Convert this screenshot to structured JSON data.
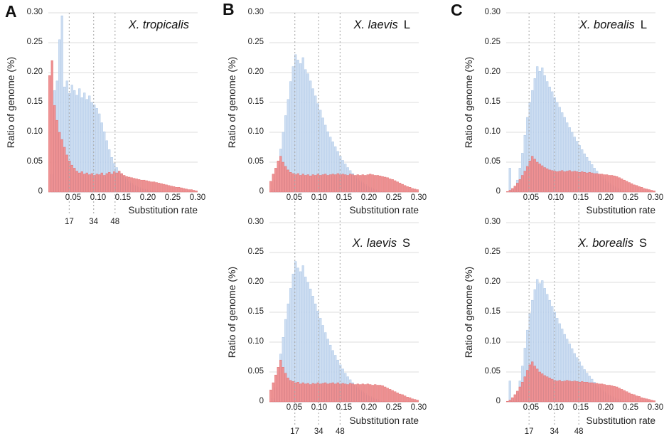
{
  "axis": {
    "y_label": "Ratio of genome (%)",
    "x_label": "Substitution rate",
    "y_ticks": [
      "0.30",
      "0.25",
      "0.20",
      "0.15",
      "0.10",
      "0.05",
      "0"
    ],
    "x_ticks": [
      "0.05",
      "0.10",
      "0.15",
      "0.20",
      "0.25",
      "0.30"
    ]
  },
  "colors": {
    "blue_fill": "#cfdff2",
    "blue_stroke": "#aac6e6",
    "red_fill": "#ef9496",
    "red_stroke": "#e06e6e",
    "grid": "#dedede",
    "dashed": "#aaaaaa",
    "text": "#222222",
    "background": "#ffffff"
  },
  "chart_data": [
    {
      "type": "bar",
      "letter": "A",
      "title_italic": "X. tropicalis",
      "title_suffix": "",
      "xlabel": "Substitution rate",
      "ylabel": "Ratio of genome (%)",
      "xlim": [
        0,
        0.3
      ],
      "ylim": [
        0,
        0.3
      ],
      "bin_width": 0.005,
      "dashed_lines": {
        "rates": [
          0.042,
          0.091,
          0.134
        ],
        "labels": [
          "17",
          "34",
          "48"
        ],
        "labels_visible": true
      },
      "series": [
        {
          "name": "blue",
          "values": [
            0,
            0.03,
            0.17,
            0.186,
            0.255,
            0.295,
            0.176,
            0.186,
            0.165,
            0.179,
            0.17,
            0.162,
            0.173,
            0.158,
            0.166,
            0.155,
            0.161,
            0.15,
            0.146,
            0.14,
            0.131,
            0.116,
            0.101,
            0.086,
            0.071,
            0.058,
            0.048,
            0.041,
            0.035,
            0.03,
            0.026,
            0.022,
            0.018,
            0.015,
            0.012,
            0.01,
            0.008,
            0.006,
            0.005,
            0.004,
            0.003,
            0.002,
            0.002,
            0.001,
            0.001,
            0.001,
            0,
            0,
            0,
            0,
            0,
            0,
            0,
            0,
            0,
            0,
            0,
            0,
            0,
            0
          ]
        },
        {
          "name": "red",
          "values": [
            0.195,
            0.22,
            0.145,
            0.12,
            0.1,
            0.088,
            0.075,
            0.062,
            0.052,
            0.045,
            0.04,
            0.035,
            0.032,
            0.034,
            0.03,
            0.032,
            0.029,
            0.031,
            0.028,
            0.03,
            0.029,
            0.032,
            0.028,
            0.031,
            0.033,
            0.03,
            0.034,
            0.032,
            0.035,
            0.031,
            0.028,
            0.026,
            0.025,
            0.024,
            0.023,
            0.022,
            0.021,
            0.02,
            0.02,
            0.019,
            0.018,
            0.017,
            0.017,
            0.016,
            0.015,
            0.014,
            0.013,
            0.012,
            0.011,
            0.01,
            0.009,
            0.008,
            0.008,
            0.007,
            0.006,
            0.005,
            0.004,
            0.004,
            0.003,
            0.002
          ]
        }
      ]
    },
    {
      "type": "bar",
      "letter": "B",
      "title_italic": "X. laevis",
      "title_suffix": "L",
      "xlabel": "Substitution rate",
      "ylabel": "Ratio of genome (%)",
      "xlim": [
        0,
        0.3
      ],
      "ylim": [
        0,
        0.3
      ],
      "bin_width": 0.005,
      "dashed_lines": {
        "rates": [
          0.051,
          0.099,
          0.142
        ],
        "labels": [
          "17",
          "34",
          "48"
        ],
        "labels_visible": false
      },
      "series": [
        {
          "name": "blue",
          "values": [
            0,
            0.005,
            0.02,
            0.045,
            0.072,
            0.1,
            0.128,
            0.155,
            0.185,
            0.21,
            0.23,
            0.221,
            0.215,
            0.225,
            0.205,
            0.198,
            0.186,
            0.173,
            0.161,
            0.148,
            0.137,
            0.124,
            0.112,
            0.101,
            0.092,
            0.084,
            0.076,
            0.068,
            0.06,
            0.053,
            0.047,
            0.041,
            0.036,
            0.031,
            0.027,
            0.023,
            0.019,
            0.016,
            0.013,
            0.01,
            0.008,
            0.006,
            0.004,
            0.003,
            0.002,
            0.001,
            0.001,
            0,
            0,
            0,
            0,
            0,
            0,
            0,
            0,
            0,
            0,
            0,
            0,
            0
          ]
        },
        {
          "name": "red",
          "values": [
            0.018,
            0.03,
            0.04,
            0.052,
            0.06,
            0.05,
            0.043,
            0.037,
            0.033,
            0.031,
            0.029,
            0.031,
            0.028,
            0.03,
            0.028,
            0.029,
            0.027,
            0.029,
            0.028,
            0.03,
            0.028,
            0.029,
            0.03,
            0.028,
            0.029,
            0.03,
            0.029,
            0.031,
            0.029,
            0.03,
            0.029,
            0.028,
            0.03,
            0.029,
            0.028,
            0.029,
            0.028,
            0.029,
            0.028,
            0.029,
            0.03,
            0.029,
            0.028,
            0.028,
            0.027,
            0.026,
            0.025,
            0.024,
            0.022,
            0.021,
            0.019,
            0.017,
            0.015,
            0.013,
            0.011,
            0.009,
            0.008,
            0.006,
            0.005,
            0.004
          ]
        }
      ]
    },
    {
      "type": "bar",
      "letter": "",
      "title_italic": "X. laevis",
      "title_suffix": "S",
      "xlabel": "Substitution rate",
      "ylabel": "Ratio of genome (%)",
      "xlim": [
        0,
        0.3
      ],
      "ylim": [
        0,
        0.3
      ],
      "bin_width": 0.005,
      "dashed_lines": {
        "rates": [
          0.051,
          0.099,
          0.142
        ],
        "labels": [
          "17",
          "34",
          "48"
        ],
        "labels_visible": true
      },
      "series": [
        {
          "name": "blue",
          "values": [
            0,
            0.006,
            0.024,
            0.05,
            0.08,
            0.108,
            0.138,
            0.164,
            0.19,
            0.214,
            0.235,
            0.224,
            0.218,
            0.228,
            0.209,
            0.2,
            0.189,
            0.177,
            0.164,
            0.152,
            0.14,
            0.128,
            0.116,
            0.105,
            0.095,
            0.086,
            0.078,
            0.07,
            0.062,
            0.055,
            0.048,
            0.042,
            0.037,
            0.032,
            0.028,
            0.024,
            0.02,
            0.017,
            0.014,
            0.011,
            0.009,
            0.007,
            0.005,
            0.004,
            0.002,
            0.001,
            0.001,
            0,
            0,
            0,
            0,
            0,
            0,
            0,
            0,
            0,
            0,
            0,
            0,
            0
          ]
        },
        {
          "name": "red",
          "values": [
            0.02,
            0.032,
            0.045,
            0.058,
            0.07,
            0.058,
            0.048,
            0.04,
            0.036,
            0.034,
            0.032,
            0.033,
            0.03,
            0.032,
            0.03,
            0.031,
            0.029,
            0.031,
            0.03,
            0.032,
            0.03,
            0.031,
            0.032,
            0.03,
            0.031,
            0.032,
            0.03,
            0.032,
            0.03,
            0.031,
            0.03,
            0.029,
            0.031,
            0.03,
            0.029,
            0.03,
            0.029,
            0.03,
            0.029,
            0.03,
            0.029,
            0.028,
            0.029,
            0.028,
            0.028,
            0.027,
            0.025,
            0.023,
            0.021,
            0.019,
            0.017,
            0.015,
            0.013,
            0.012,
            0.01,
            0.008,
            0.007,
            0.005,
            0.004,
            0.003
          ]
        }
      ]
    },
    {
      "type": "bar",
      "letter": "C",
      "title_italic": "X. borealis",
      "title_suffix": "L",
      "xlabel": "Substitution rate",
      "ylabel": "Ratio of genome (%)",
      "xlim": [
        0,
        0.3
      ],
      "ylim": [
        0,
        0.3
      ],
      "bin_width": 0.005,
      "dashed_lines": {
        "rates": [
          0.046,
          0.097,
          0.146
        ],
        "labels": [
          "17",
          "34",
          "48"
        ],
        "labels_visible": false
      },
      "series": [
        {
          "name": "blue",
          "values": [
            0,
            0.04,
            0.003,
            0.008,
            0.02,
            0.04,
            0.065,
            0.095,
            0.125,
            0.15,
            0.17,
            0.19,
            0.21,
            0.202,
            0.208,
            0.195,
            0.185,
            0.176,
            0.168,
            0.158,
            0.15,
            0.142,
            0.133,
            0.125,
            0.116,
            0.108,
            0.1,
            0.092,
            0.085,
            0.078,
            0.071,
            0.064,
            0.058,
            0.052,
            0.046,
            0.04,
            0.035,
            0.03,
            0.026,
            0.022,
            0.018,
            0.015,
            0.012,
            0.009,
            0.007,
            0.005,
            0.003,
            0.002,
            0.001,
            0,
            0,
            0,
            0,
            0,
            0,
            0,
            0,
            0,
            0,
            0
          ]
        },
        {
          "name": "red",
          "values": [
            0.001,
            0.003,
            0.006,
            0.01,
            0.015,
            0.021,
            0.028,
            0.035,
            0.043,
            0.052,
            0.06,
            0.055,
            0.05,
            0.047,
            0.044,
            0.041,
            0.039,
            0.037,
            0.036,
            0.035,
            0.034,
            0.035,
            0.036,
            0.034,
            0.035,
            0.036,
            0.034,
            0.035,
            0.034,
            0.033,
            0.034,
            0.033,
            0.032,
            0.033,
            0.032,
            0.031,
            0.031,
            0.03,
            0.03,
            0.029,
            0.029,
            0.028,
            0.028,
            0.027,
            0.026,
            0.024,
            0.022,
            0.02,
            0.018,
            0.016,
            0.014,
            0.012,
            0.011,
            0.009,
            0.008,
            0.006,
            0.005,
            0.004,
            0.003,
            0.002
          ]
        }
      ]
    },
    {
      "type": "bar",
      "letter": "",
      "title_italic": "X. borealis",
      "title_suffix": "S",
      "xlabel": "Substitution rate",
      "ylabel": "Ratio of genome (%)",
      "xlim": [
        0,
        0.3
      ],
      "ylim": [
        0,
        0.3
      ],
      "bin_width": 0.005,
      "dashed_lines": {
        "rates": [
          0.046,
          0.097,
          0.146
        ],
        "labels": [
          "17",
          "34",
          "48"
        ],
        "labels_visible": true
      },
      "series": [
        {
          "name": "blue",
          "values": [
            0,
            0.035,
            0.002,
            0.006,
            0.015,
            0.035,
            0.06,
            0.09,
            0.12,
            0.148,
            0.17,
            0.188,
            0.205,
            0.198,
            0.203,
            0.19,
            0.18,
            0.17,
            0.16,
            0.15,
            0.14,
            0.131,
            0.122,
            0.113,
            0.105,
            0.097,
            0.089,
            0.081,
            0.074,
            0.067,
            0.06,
            0.054,
            0.048,
            0.043,
            0.038,
            0.033,
            0.028,
            0.024,
            0.02,
            0.017,
            0.014,
            0.011,
            0.009,
            0.007,
            0.005,
            0.004,
            0.002,
            0.001,
            0.001,
            0,
            0,
            0,
            0,
            0,
            0,
            0,
            0,
            0,
            0,
            0
          ]
        },
        {
          "name": "red",
          "values": [
            0.001,
            0.003,
            0.007,
            0.012,
            0.018,
            0.025,
            0.033,
            0.042,
            0.053,
            0.062,
            0.067,
            0.06,
            0.055,
            0.05,
            0.047,
            0.044,
            0.042,
            0.04,
            0.038,
            0.036,
            0.035,
            0.036,
            0.034,
            0.035,
            0.036,
            0.035,
            0.034,
            0.035,
            0.034,
            0.033,
            0.034,
            0.033,
            0.033,
            0.032,
            0.032,
            0.031,
            0.031,
            0.03,
            0.03,
            0.029,
            0.028,
            0.028,
            0.027,
            0.026,
            0.025,
            0.023,
            0.021,
            0.019,
            0.017,
            0.015,
            0.013,
            0.012,
            0.01,
            0.009,
            0.007,
            0.006,
            0.005,
            0.004,
            0.003,
            0.002
          ]
        }
      ]
    }
  ]
}
